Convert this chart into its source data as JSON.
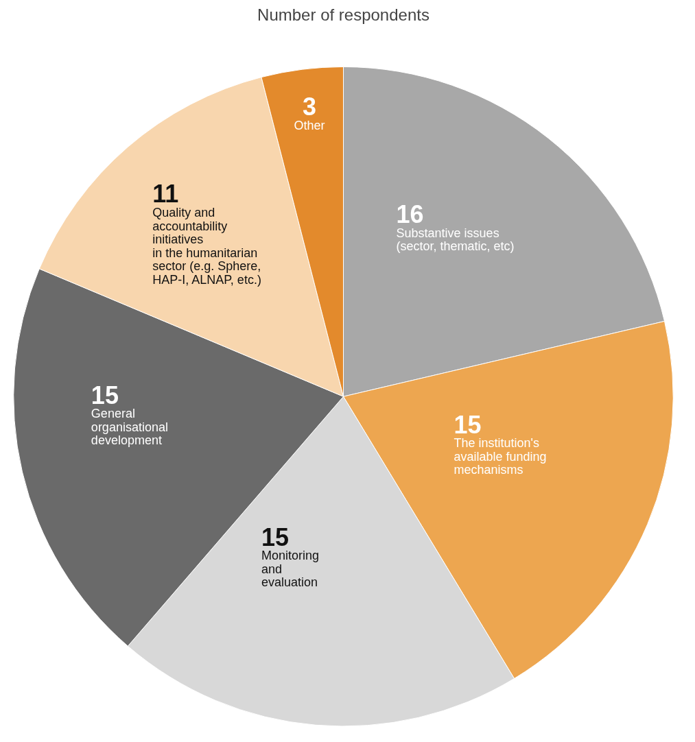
{
  "chart_data": {
    "type": "pie",
    "title": "Number of respondents",
    "categories": [
      "Substantive issues\n(sector, thematic, etc)",
      "The institution's\navailable funding\nmechanisms",
      "Monitoring\nand\nevaluation",
      "General\norganisational\ndevelopment",
      "Quality and\naccountability\ninitiatives\nin the humanitarian\nsector (e.g. Sphere,\nHAP-I, ALNAP, etc.)",
      "Other"
    ],
    "values": [
      16,
      15,
      15,
      15,
      11,
      3
    ],
    "colors": [
      "#a8a8a8",
      "#eda650",
      "#d8d8d8",
      "#6a6a6a",
      "#f8d6ae",
      "#e38a2c"
    ],
    "data_labels": true
  }
}
